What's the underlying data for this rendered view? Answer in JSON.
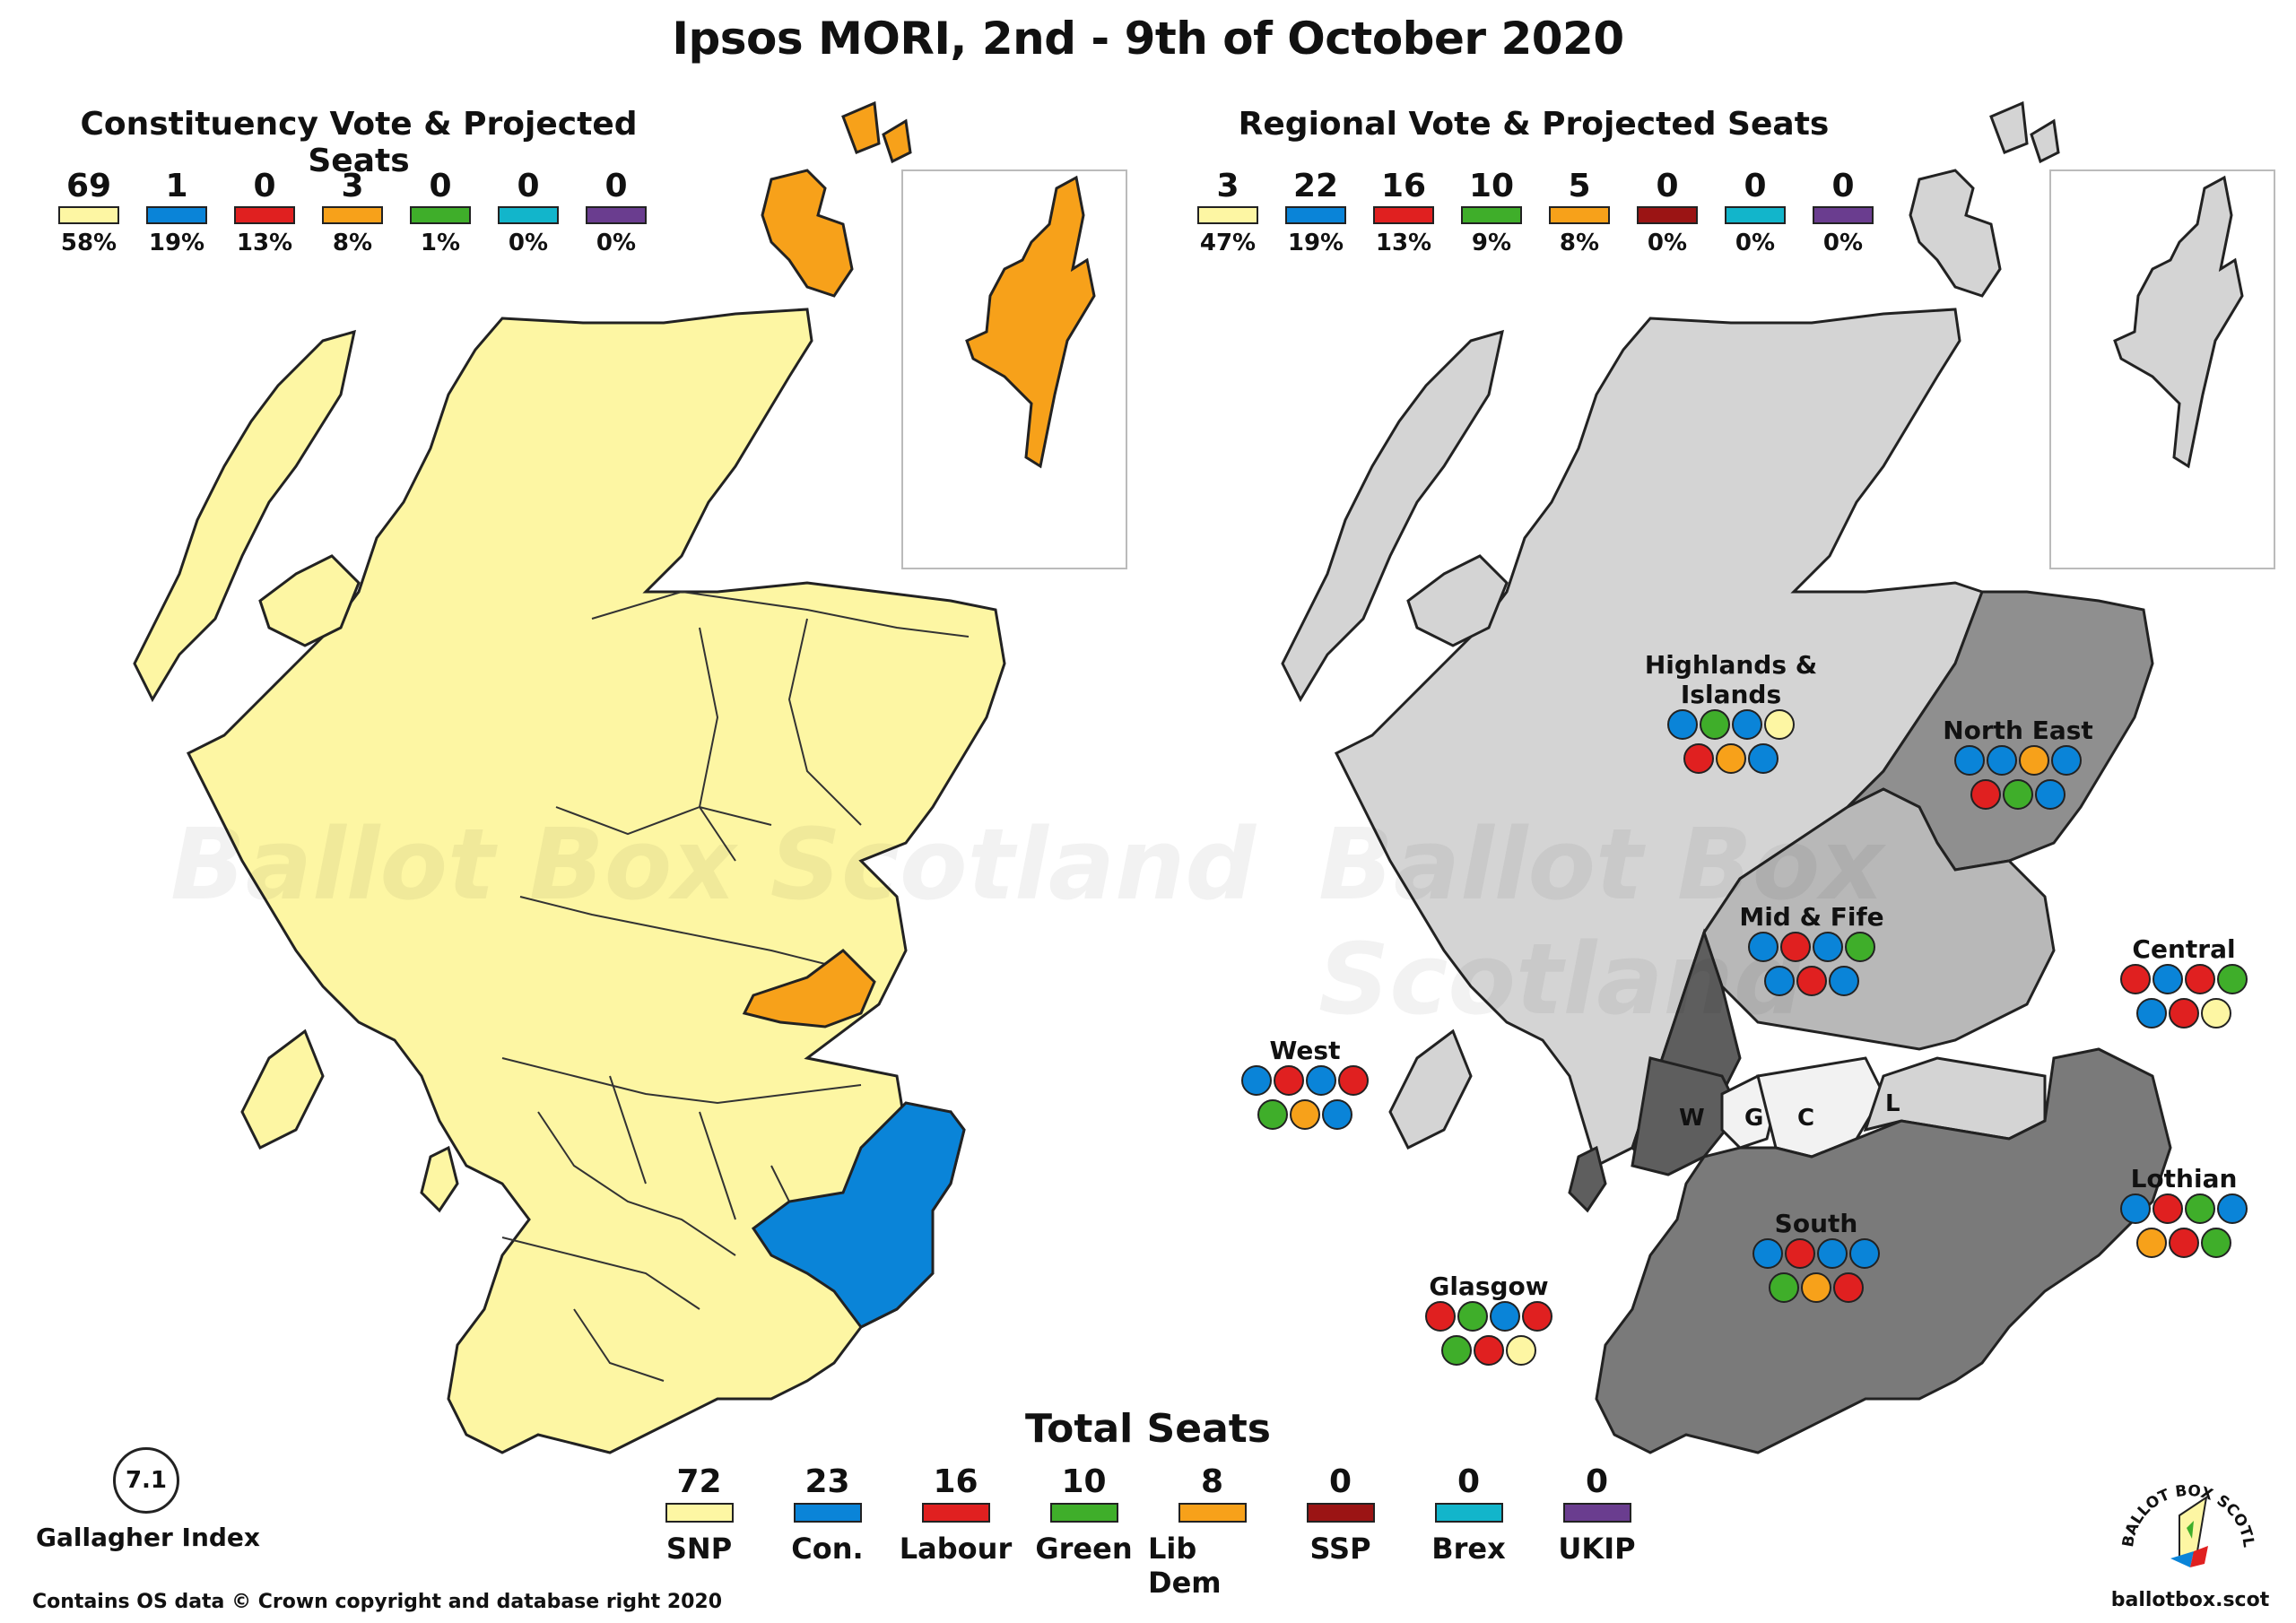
{
  "title": "Ipsos MORI, 2nd - 9th of October 2020",
  "constituency": {
    "heading": "Constituency Vote & Projected Seats",
    "legend": [
      {
        "seats": "69",
        "pct": "58%",
        "color": "#fdf6a3"
      },
      {
        "seats": "1",
        "pct": "19%",
        "color": "#0a84d8"
      },
      {
        "seats": "0",
        "pct": "13%",
        "color": "#e02020"
      },
      {
        "seats": "3",
        "pct": "8%",
        "color": "#f7a11a"
      },
      {
        "seats": "0",
        "pct": "1%",
        "color": "#3fae2a"
      },
      {
        "seats": "0",
        "pct": "0%",
        "color": "#12b5cb"
      },
      {
        "seats": "0",
        "pct": "0%",
        "color": "#6a3d8f"
      }
    ]
  },
  "regional": {
    "heading": "Regional Vote & Projected Seats",
    "legend": [
      {
        "seats": "3",
        "pct": "47%",
        "color": "#fdf6a3"
      },
      {
        "seats": "22",
        "pct": "19%",
        "color": "#0a84d8"
      },
      {
        "seats": "16",
        "pct": "13%",
        "color": "#e02020"
      },
      {
        "seats": "10",
        "pct": "9%",
        "color": "#3fae2a"
      },
      {
        "seats": "5",
        "pct": "8%",
        "color": "#f7a11a"
      },
      {
        "seats": "0",
        "pct": "0%",
        "color": "#9b1414"
      },
      {
        "seats": "0",
        "pct": "0%",
        "color": "#12b5cb"
      },
      {
        "seats": "0",
        "pct": "0%",
        "color": "#6a3d8f"
      }
    ],
    "regions": [
      {
        "name": "Highlands & Islands",
        "rows": [
          [
            "#0a84d8",
            "#3fae2a",
            "#0a84d8",
            "#fdf6a3"
          ],
          [
            "#e02020",
            "#f7a11a",
            "#0a84d8"
          ]
        ]
      },
      {
        "name": "North East",
        "rows": [
          [
            "#0a84d8",
            "#0a84d8",
            "#f7a11a",
            "#0a84d8"
          ],
          [
            "#e02020",
            "#3fae2a",
            "#0a84d8"
          ]
        ]
      },
      {
        "name": "Mid & Fife",
        "rows": [
          [
            "#0a84d8",
            "#e02020",
            "#0a84d8",
            "#3fae2a"
          ],
          [
            "#0a84d8",
            "#e02020",
            "#0a84d8"
          ]
        ]
      },
      {
        "name": "Central",
        "rows": [
          [
            "#e02020",
            "#0a84d8",
            "#e02020",
            "#3fae2a"
          ],
          [
            "#0a84d8",
            "#e02020",
            "#fdf6a3"
          ]
        ]
      },
      {
        "name": "West",
        "rows": [
          [
            "#0a84d8",
            "#e02020",
            "#0a84d8",
            "#e02020"
          ],
          [
            "#3fae2a",
            "#f7a11a",
            "#0a84d8"
          ]
        ]
      },
      {
        "name": "Lothian",
        "rows": [
          [
            "#0a84d8",
            "#e02020",
            "#3fae2a",
            "#0a84d8"
          ],
          [
            "#f7a11a",
            "#e02020",
            "#3fae2a"
          ]
        ]
      },
      {
        "name": "South",
        "rows": [
          [
            "#0a84d8",
            "#e02020",
            "#0a84d8",
            "#0a84d8"
          ],
          [
            "#3fae2a",
            "#f7a11a",
            "#e02020"
          ]
        ]
      },
      {
        "name": "Glasgow",
        "rows": [
          [
            "#e02020",
            "#3fae2a",
            "#0a84d8",
            "#e02020"
          ],
          [
            "#3fae2a",
            "#e02020",
            "#fdf6a3"
          ]
        ]
      }
    ],
    "map_letters": [
      "W",
      "G",
      "C",
      "L"
    ]
  },
  "total": {
    "heading": "Total Seats",
    "parties": [
      {
        "seats": "72",
        "name": "SNP",
        "color": "#fdf6a3"
      },
      {
        "seats": "23",
        "name": "Con.",
        "color": "#0a84d8"
      },
      {
        "seats": "16",
        "name": "Labour",
        "color": "#e02020"
      },
      {
        "seats": "10",
        "name": "Green",
        "color": "#3fae2a"
      },
      {
        "seats": "8",
        "name": "Lib Dem",
        "color": "#f7a11a"
      },
      {
        "seats": "0",
        "name": "SSP",
        "color": "#9b1414"
      },
      {
        "seats": "0",
        "name": "Brex",
        "color": "#12b5cb"
      },
      {
        "seats": "0",
        "name": "UKIP",
        "color": "#6a3d8f"
      }
    ]
  },
  "gallagher": {
    "value": "7.1",
    "label": "Gallagher Index"
  },
  "footer": "Contains OS data © Crown copyright and database right 2020",
  "logo": {
    "text": "BALLOT BOX SCOTLAND",
    "url": "ballotbox.scot"
  },
  "watermark": "Ballot Box Scotland",
  "colors": {
    "snp": "#fdf6a3",
    "con": "#0a84d8",
    "lab": "#e02020",
    "ld": "#f7a11a",
    "highland_region": "#d4d4d4",
    "mid_region": "#b8b8b8",
    "ne_region": "#8f8f8f",
    "south_region": "#7a7a7a",
    "west_region": "#5e5e5e",
    "central_region": "#f2f2f2"
  }
}
